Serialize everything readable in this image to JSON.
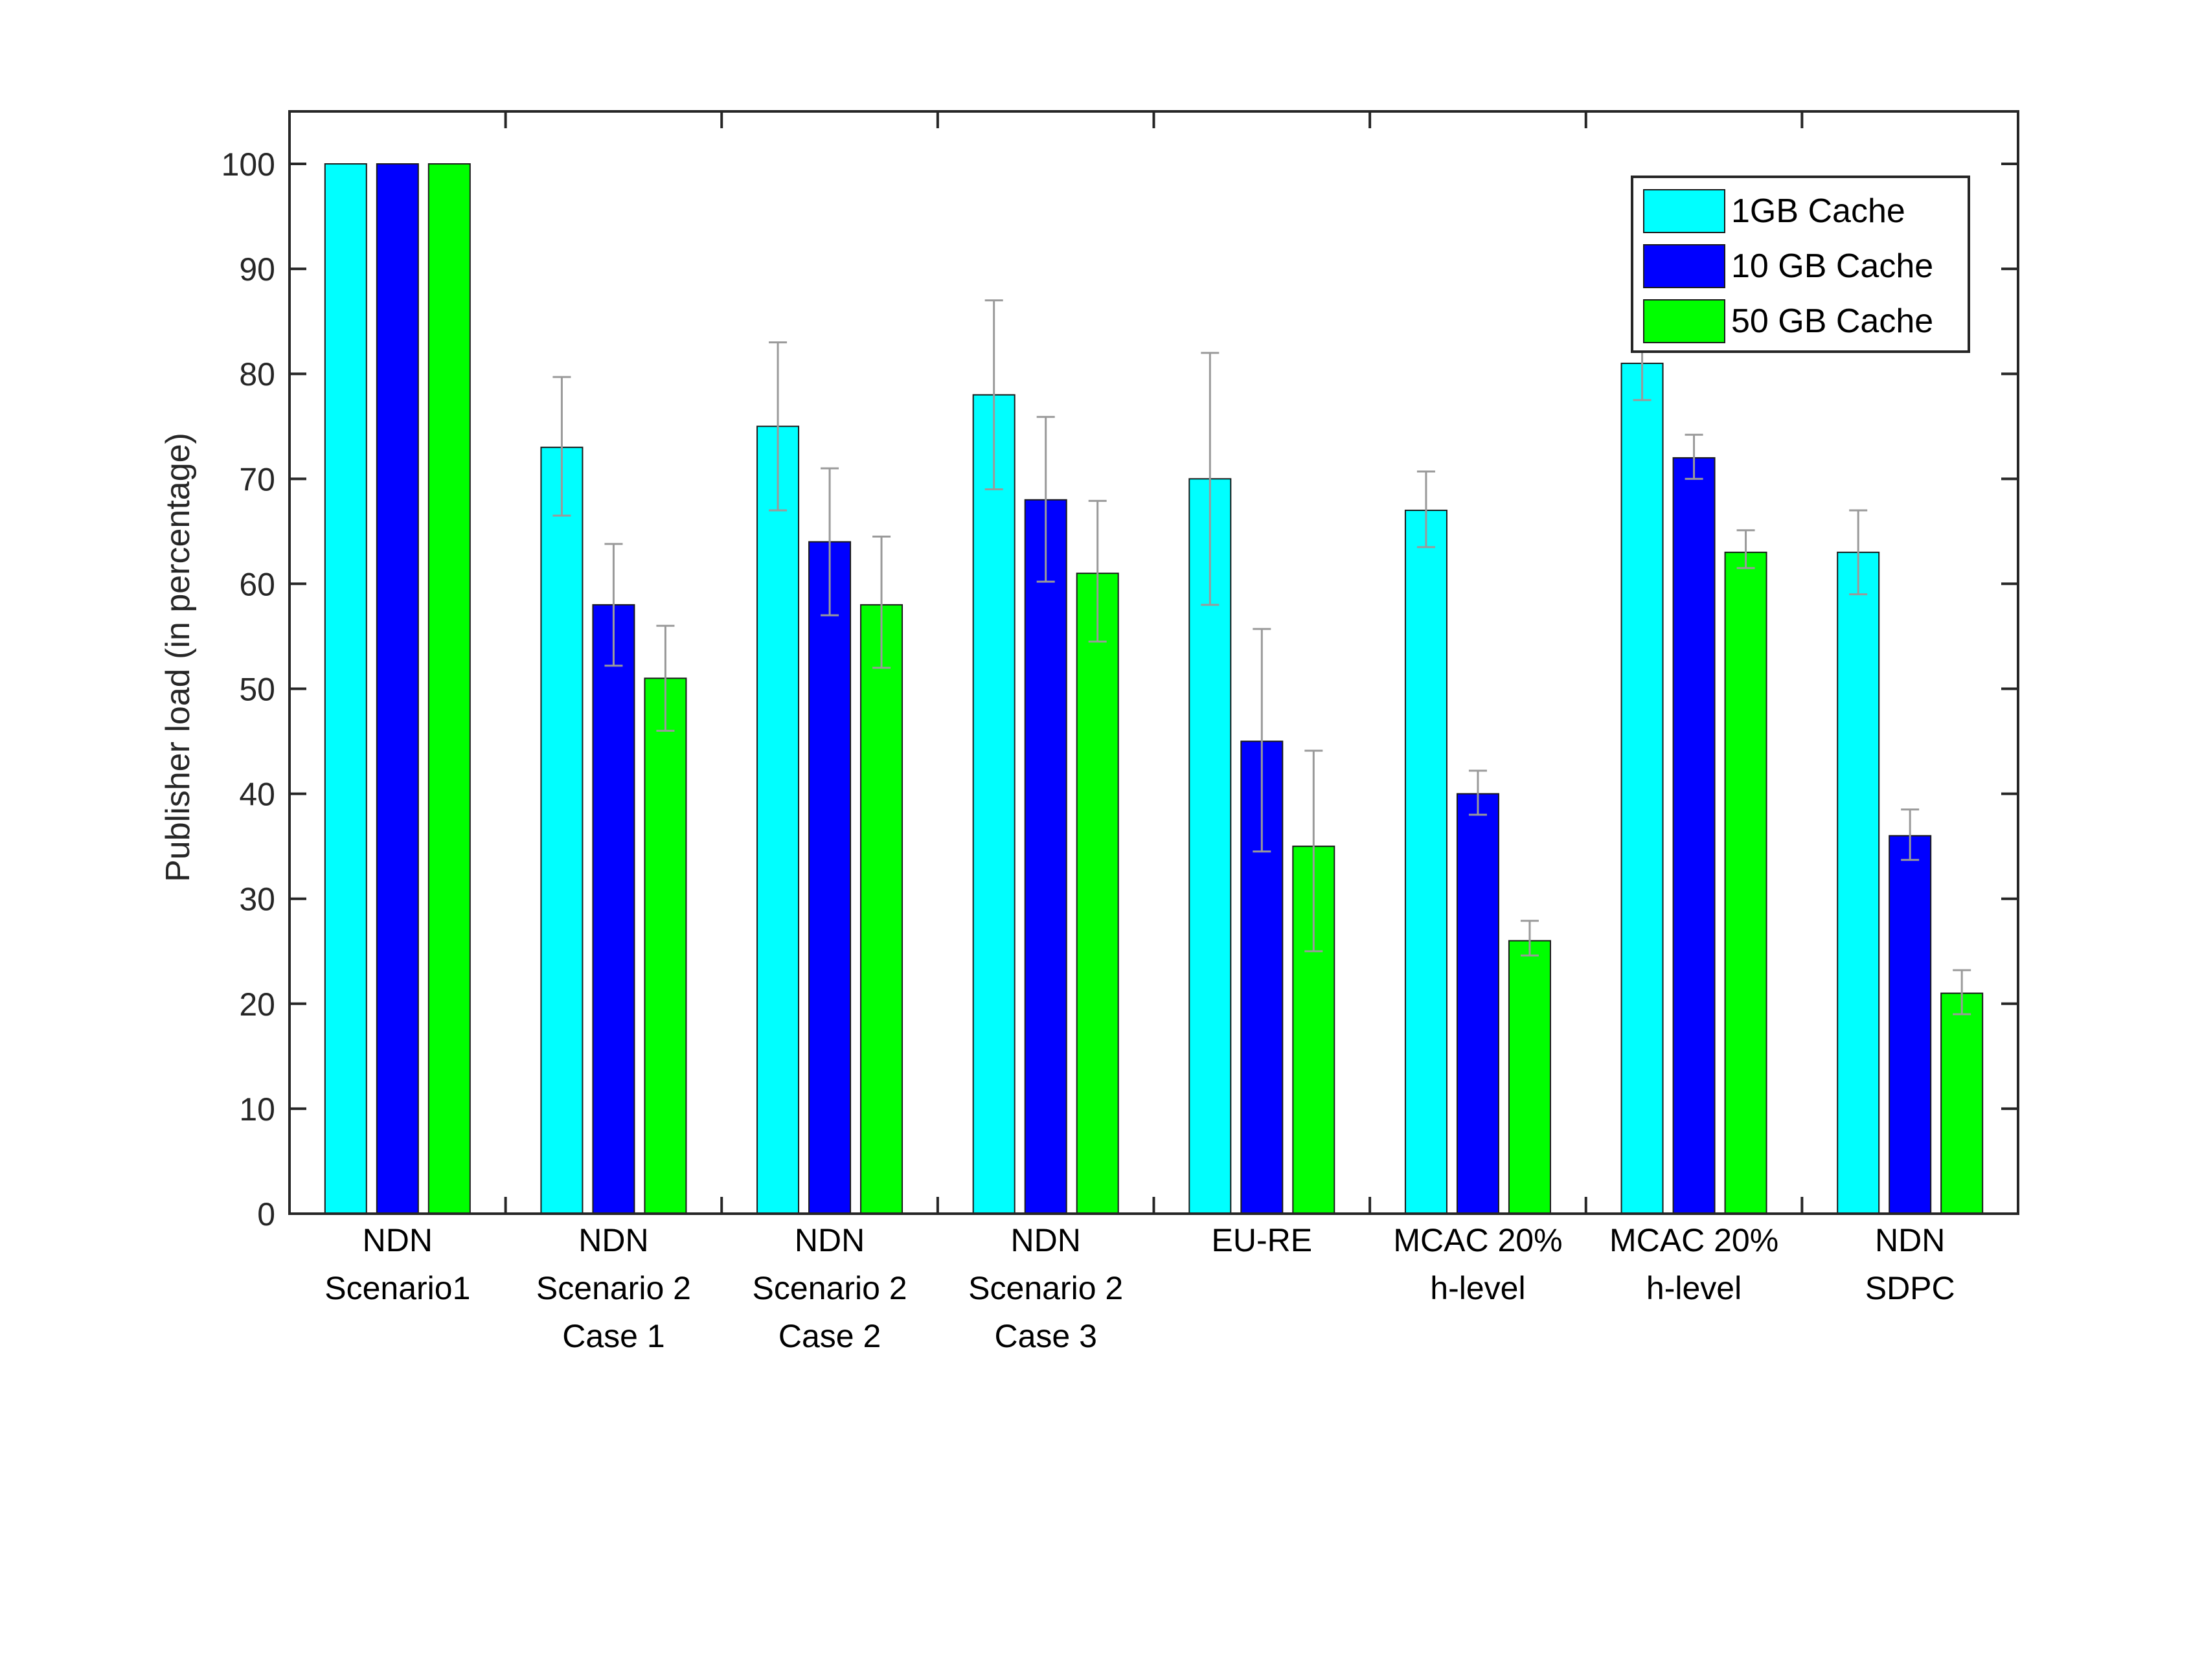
{
  "chart_data": {
    "type": "bar",
    "ylabel": "Publisher load (in percentage)",
    "xlabel": "",
    "title": "",
    "ylim": [
      0,
      105
    ],
    "yticks": [
      0,
      10,
      20,
      30,
      40,
      50,
      60,
      70,
      80,
      90,
      100
    ],
    "grid": false,
    "legend_position": "top-right",
    "categories": [
      [
        "NDN",
        "Scenario1"
      ],
      [
        "NDN",
        "Scenario 2",
        "Case 1"
      ],
      [
        "NDN",
        "Scenario 2",
        "Case 2"
      ],
      [
        "NDN",
        "Scenario 2",
        "Case 3"
      ],
      [
        "EU-RE"
      ],
      [
        "MCAC 20%",
        "h-level"
      ],
      [
        "MCAC 20%",
        "h-level"
      ],
      [
        "NDN",
        "SDPC"
      ]
    ],
    "series": [
      {
        "name": "1GB Cache",
        "color": "#00ffff",
        "values": [
          100,
          73,
          75,
          78,
          70,
          67,
          81,
          63
        ],
        "err_low": [
          100,
          66.5,
          67,
          69,
          58,
          63.5,
          77.5,
          59
        ],
        "err_high": [
          100,
          79.7,
          83,
          87,
          82,
          70.7,
          84.7,
          67
        ]
      },
      {
        "name": "10 GB Cache",
        "color": "#0000ff",
        "values": [
          100,
          58,
          64,
          68,
          45,
          40,
          72,
          36
        ],
        "err_low": [
          100,
          52.2,
          57,
          60.2,
          34.5,
          38,
          70,
          33.7
        ],
        "err_high": [
          100,
          63.8,
          71,
          75.9,
          55.7,
          42.2,
          74.2,
          38.5
        ]
      },
      {
        "name": "50 GB Cache",
        "color": "#00ff00",
        "values": [
          100,
          51,
          58,
          61,
          35,
          26,
          63,
          21
        ],
        "err_low": [
          100,
          46,
          52,
          54.5,
          25,
          24.6,
          61.5,
          19
        ],
        "err_high": [
          100,
          56,
          64.5,
          67.9,
          44.1,
          27.9,
          65.1,
          23.2
        ]
      }
    ]
  }
}
